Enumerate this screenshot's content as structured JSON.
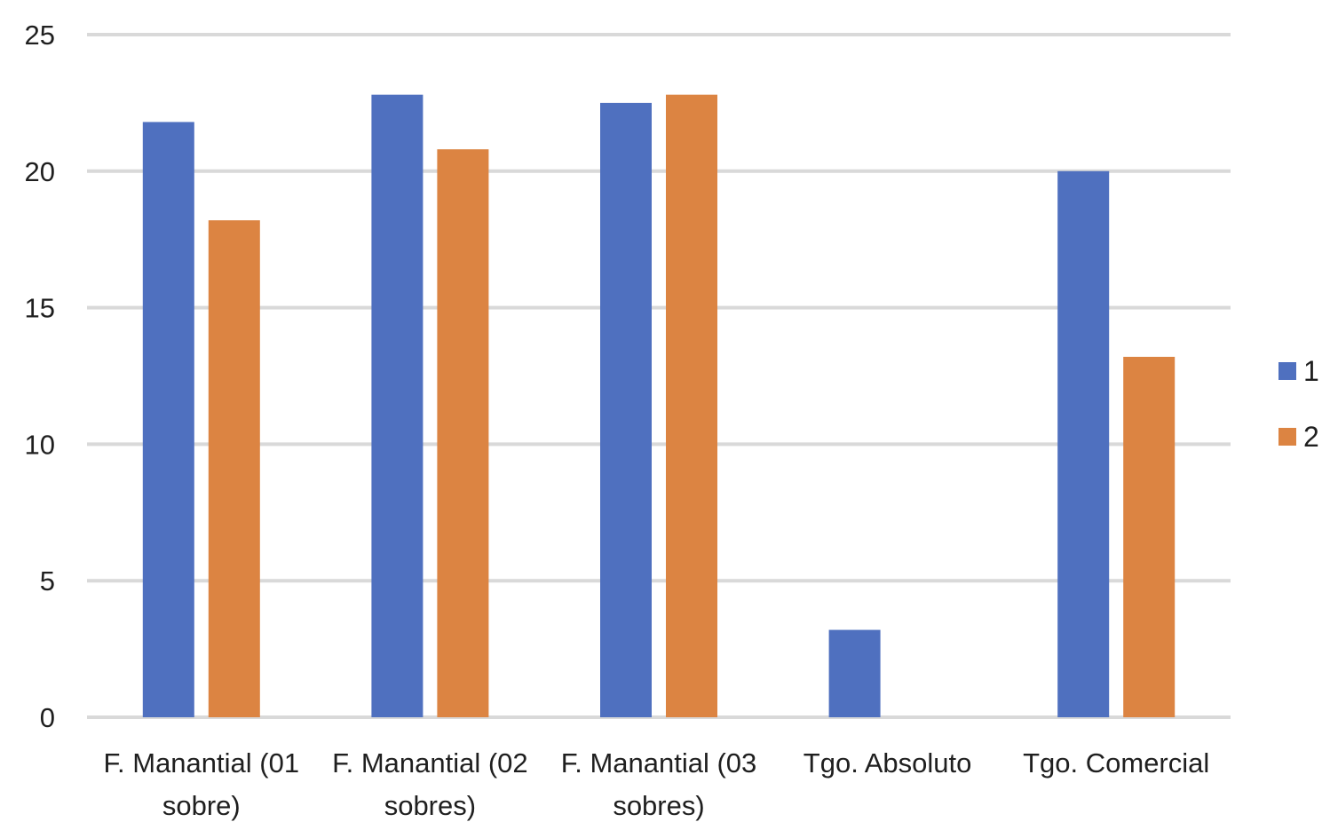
{
  "chart_data": {
    "type": "bar",
    "categories": [
      [
        "F. Manantial (01",
        "sobre)"
      ],
      [
        "F. Manantial (02",
        "sobres)"
      ],
      [
        "F. Manantial (03",
        "sobres)"
      ],
      [
        "Tgo. Absoluto"
      ],
      [
        "Tgo. Comercial"
      ]
    ],
    "series": [
      {
        "name": "1",
        "color": "#4f70bf",
        "values": [
          21.8,
          22.8,
          22.5,
          3.2,
          20.0
        ]
      },
      {
        "name": "2",
        "color": "#dc8442",
        "values": [
          18.2,
          20.8,
          22.8,
          null,
          13.2
        ]
      }
    ],
    "ylim": [
      0,
      25
    ],
    "yticks": [
      0,
      5,
      10,
      15,
      20,
      25
    ],
    "grid": true,
    "gridline_color": "#d9d9d9",
    "legend_position": "right",
    "title": "",
    "xlabel": "",
    "ylabel": ""
  }
}
